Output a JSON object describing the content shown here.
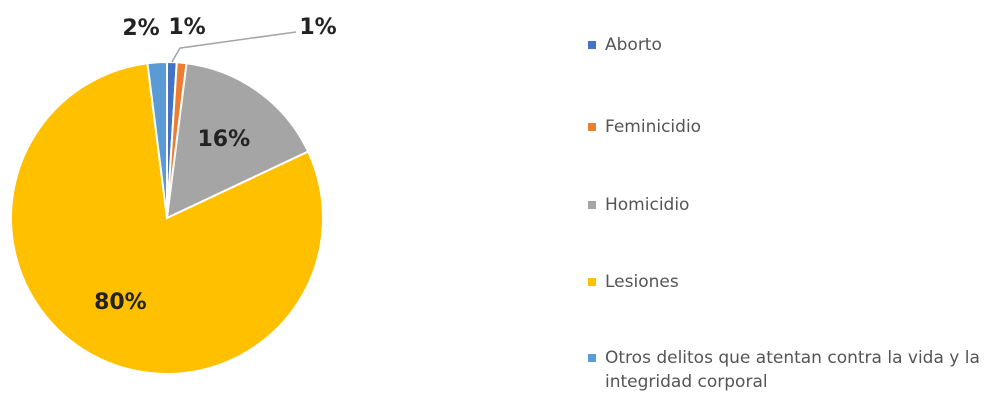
{
  "chart_data": {
    "type": "pie",
    "categories": [
      "Aborto",
      "Feminicidio",
      "Homicidio",
      "Lesiones",
      "Otros delitos que atentan contra la vida y la integridad corporal"
    ],
    "values": [
      1,
      1,
      16,
      80,
      2
    ],
    "value_labels": [
      "1%",
      "1%",
      "16%",
      "80%",
      "2%"
    ],
    "colors": [
      "#4472c4",
      "#ed7d31",
      "#a5a5a5",
      "#ffc000",
      "#5b9bd5"
    ],
    "legend": "right"
  }
}
